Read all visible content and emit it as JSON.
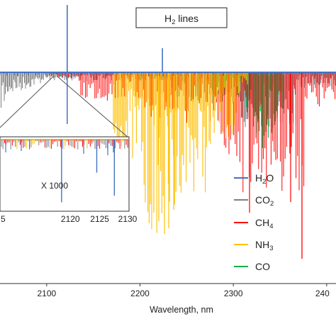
{
  "chart_data": {
    "type": "line",
    "title": "",
    "xlabel": "Wavelength, nm",
    "ylabel": "",
    "xlim": [
      2050,
      2410
    ],
    "x_ticks": [
      "2100",
      "2200",
      "2300",
      "240"
    ],
    "annotation": {
      "label": "H",
      "sub": "2",
      "suffix": " lines"
    },
    "series": [
      {
        "name": "H₂O",
        "label": "H",
        "sub": "2",
        "suffix": "O",
        "color": "#4472C4"
      },
      {
        "name": "CO₂",
        "label": "CO",
        "sub": "2",
        "suffix": "",
        "color": "#7F7F7F"
      },
      {
        "name": "CH₄",
        "label": "CH",
        "sub": "4",
        "suffix": "",
        "color": "#FF0000"
      },
      {
        "name": "NH₃",
        "label": "NH",
        "sub": "3",
        "suffix": "",
        "color": "#FFC000"
      },
      {
        "name": "CO",
        "label": "CO",
        "sub": "",
        "suffix": "",
        "color": "#00B050"
      }
    ],
    "h2_lines": [
      2122,
      2224
    ],
    "inset": {
      "xlim": [
        2110,
        2130
      ],
      "x_ticks": [
        "2120",
        "2125",
        "2130"
      ],
      "x_tick_left_partial": "5",
      "magnification_label": "X 1000",
      "h2o_line_positions": [
        2118.5,
        2124.5,
        2127.5
      ],
      "h2o_line_depths": [
        0.95,
        0.5,
        0.85
      ]
    },
    "legend_position": "right"
  }
}
